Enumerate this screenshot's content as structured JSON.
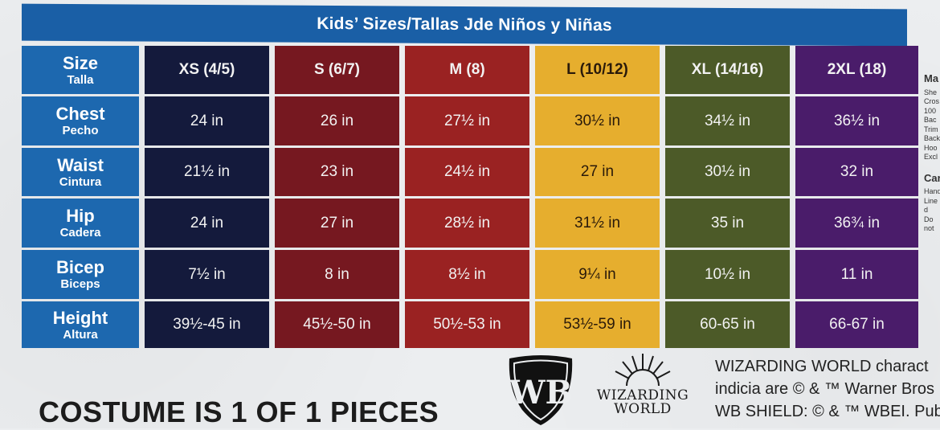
{
  "banner_title": "Kids’ Sizes/Tallas Jde Niños y Niñas",
  "corner": {
    "en": "Size",
    "es": "Talla"
  },
  "sizes": [
    "XS (4/5)",
    "S (6/7)",
    "M (8)",
    "L (10/12)",
    "XL (14/16)",
    "2XL (18)"
  ],
  "size_colors": [
    "#141a3c",
    "#761820",
    "#9a2222",
    "#e6ae2e",
    "#4c5a28",
    "#4a1c6a"
  ],
  "rows": [
    {
      "en": "Chest",
      "es": "Pecho",
      "values": [
        "24 in",
        "26 in",
        "27½ in",
        "30½ in",
        "34½ in",
        "36½ in"
      ]
    },
    {
      "en": "Waist",
      "es": "Cintura",
      "values": [
        "21½ in",
        "23 in",
        "24½ in",
        "27 in",
        "30½ in",
        "32 in"
      ]
    },
    {
      "en": "Hip",
      "es": "Cadera",
      "values": [
        "24 in",
        "27 in",
        "28½ in",
        "31½ in",
        "35 in",
        "36¾ in"
      ]
    },
    {
      "en": "Bicep",
      "es": "Biceps",
      "values": [
        "7½ in",
        "8 in",
        "8½ in",
        "9¼ in",
        "10½ in",
        "11 in"
      ]
    },
    {
      "en": "Height",
      "es": "Altura",
      "values": [
        "39½-45 in",
        "45½-50 in",
        "50½-53 in",
        "53½-59 in",
        "60-65 in",
        "66-67 in"
      ]
    }
  ],
  "sidebar": {
    "heading1": "Ma",
    "lines1": [
      "She",
      "Cros",
      "100",
      "Bac",
      "Trim",
      "Back",
      "Hoo",
      "Excl"
    ],
    "heading2": "Car",
    "lines2": [
      "Hand",
      "Line d",
      "Do not"
    ]
  },
  "costume_note": "COSTUME IS 1 OF 1 PIECES",
  "wb_logo_text": "WB",
  "wizarding_world": {
    "line1": "WIZARDING",
    "line2": "WORLD"
  },
  "legal": [
    "WIZARDING WORLD charact",
    "indicia are © & ™ Warner Bros",
    "WB SHIELD: © & ™ WBEI. Publ"
  ]
}
